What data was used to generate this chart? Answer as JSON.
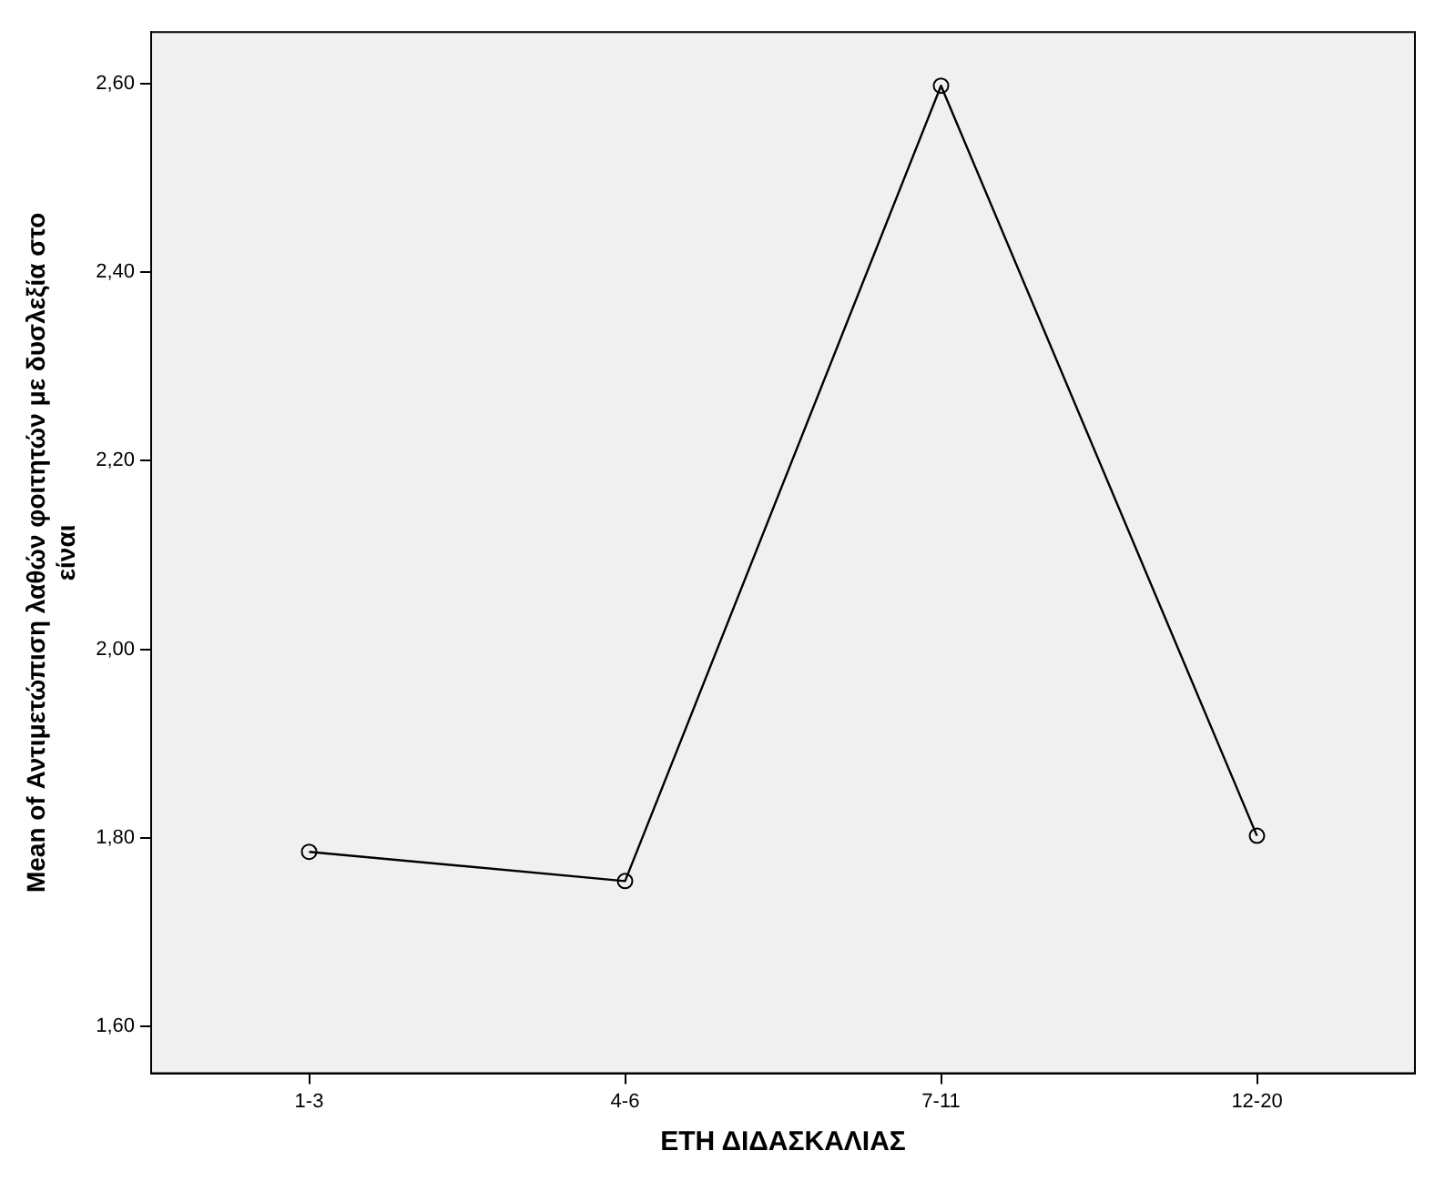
{
  "chart_data": {
    "type": "line",
    "xlabel": "ΕΤΗ ΔΙΔΑΣΚΑΛΙΑΣ",
    "ylabel": "Mean of Αντιμετώπιση λαθών φοιτητών με δυσλεξία στο είναι",
    "categories": [
      "1-3",
      "4-6",
      "7-11",
      "12-20"
    ],
    "series": [
      {
        "color": "#000000",
        "values": [
          1.785,
          1.754,
          2.598,
          1.802
        ]
      }
    ],
    "ylim": [
      1.55,
      2.655
    ],
    "yticks": [
      {
        "value": 1.6,
        "label": "1,60"
      },
      {
        "value": 1.8,
        "label": "1,80"
      },
      {
        "value": 2.0,
        "label": "2,00"
      },
      {
        "value": 2.2,
        "label": "2,20"
      },
      {
        "value": 2.4,
        "label": "2,40"
      },
      {
        "value": 2.6,
        "label": "2,60"
      }
    ],
    "grid": false,
    "legend": false,
    "marker": "circle",
    "line_style": "solid"
  }
}
